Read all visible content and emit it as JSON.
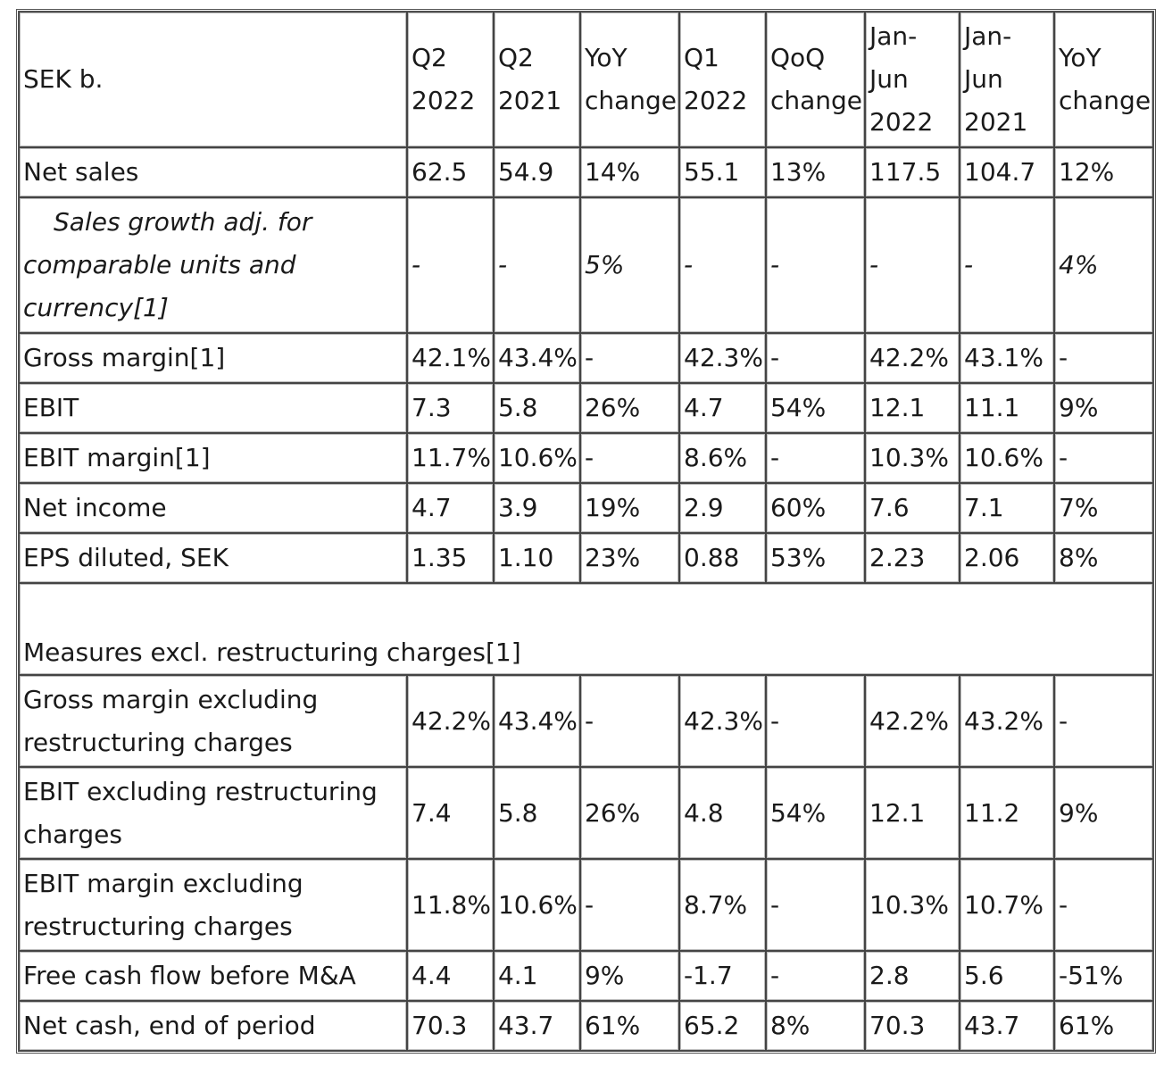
{
  "table": {
    "header": {
      "corner": "SEK b.",
      "columns": [
        [
          "Q2",
          "2022"
        ],
        [
          "Q2",
          "2021"
        ],
        [
          "YoY",
          "change"
        ],
        [
          "Q1",
          "2022"
        ],
        [
          "QoQ",
          "change"
        ],
        [
          "Jan-",
          "Jun",
          "2022"
        ],
        [
          "Jan-",
          "Jun",
          "2021"
        ],
        [
          "YoY",
          "change"
        ]
      ]
    },
    "rows": [
      {
        "label": "Net sales",
        "values": [
          "62.5",
          "54.9",
          "14%",
          "55.1",
          "13%",
          "117.5",
          "104.7",
          "12%"
        ]
      },
      {
        "label": "Sales growth adj. for comparable units and currency[1]",
        "values": [
          "-",
          "-",
          "5%",
          "-",
          "-",
          "-",
          "-",
          "4%"
        ]
      },
      {
        "label": "Gross margin[1]",
        "values": [
          "42.1%",
          "43.4%",
          "-",
          "42.3%",
          "-",
          "42.2%",
          "43.1%",
          "-"
        ]
      },
      {
        "label": "EBIT",
        "values": [
          "7.3",
          "5.8",
          "26%",
          "4.7",
          "54%",
          "12.1",
          "11.1",
          "9%"
        ]
      },
      {
        "label": "EBIT margin[1]",
        "values": [
          "11.7%",
          "10.6%",
          "-",
          "8.6%",
          "-",
          "10.3%",
          "10.6%",
          "-"
        ]
      },
      {
        "label": "Net income",
        "values": [
          "4.7",
          "3.9",
          "19%",
          "2.9",
          "60%",
          "7.6",
          "7.1",
          "7%"
        ]
      },
      {
        "label": "EPS diluted, SEK",
        "values": [
          "1.35",
          "1.10",
          "23%",
          "0.88",
          "53%",
          "2.23",
          "2.06",
          "8%"
        ]
      }
    ],
    "section_title": "Measures excl. restructuring charges[1]",
    "rows2": [
      {
        "label": "Gross margin excluding restructuring charges",
        "values": [
          "42.2%",
          "43.4%",
          "-",
          "42.3%",
          "-",
          "42.2%",
          "43.2%",
          "-"
        ]
      },
      {
        "label": "EBIT excluding restructuring charges",
        "values": [
          "7.4",
          "5.8",
          "26%",
          "4.8",
          "54%",
          "12.1",
          "11.2",
          "9%"
        ]
      },
      {
        "label": "EBIT margin excluding restructuring charges",
        "values": [
          "11.8%",
          "10.6%",
          "-",
          "8.7%",
          "-",
          "10.3%",
          "10.7%",
          "-"
        ]
      },
      {
        "label": "Free cash flow before M&A",
        "values": [
          "4.4",
          "4.1",
          "9%",
          "-1.7",
          "-",
          "2.8",
          "5.6",
          "-51%"
        ]
      },
      {
        "label": "Net cash, end of period",
        "values": [
          "70.3",
          "43.7",
          "61%",
          "65.2",
          "8%",
          "70.3",
          "43.7",
          "61%"
        ]
      }
    ]
  }
}
